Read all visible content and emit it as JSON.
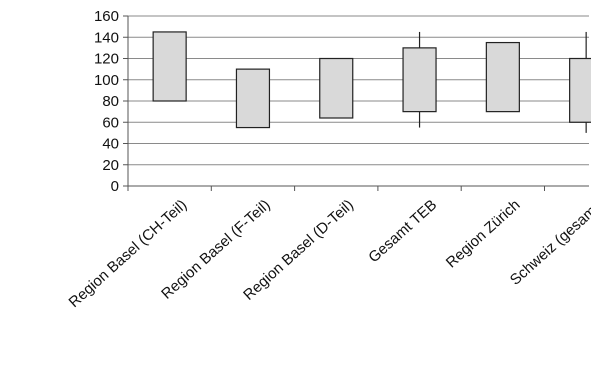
{
  "chart_data": {
    "type": "box",
    "title": "",
    "xlabel": "",
    "ylabel": "",
    "ylim": [
      0,
      160
    ],
    "yticks": [
      0,
      20,
      40,
      60,
      80,
      100,
      120,
      140,
      160
    ],
    "grid": true,
    "categories": [
      "Region Basel (CH-Teil)",
      "Region Basel (F-Teil)",
      "Region Basel (D-Teil)",
      "Gesamt TEB",
      "Region Zürich",
      "Schweiz (gesamt)"
    ],
    "boxes": [
      {
        "low": 80,
        "high": 145,
        "whisker_low": null,
        "whisker_high": null
      },
      {
        "low": 55,
        "high": 110,
        "whisker_low": null,
        "whisker_high": null
      },
      {
        "low": 64,
        "high": 120,
        "whisker_low": null,
        "whisker_high": null
      },
      {
        "low": 70,
        "high": 130,
        "whisker_low": 55,
        "whisker_high": 145
      },
      {
        "low": 70,
        "high": 135,
        "whisker_low": null,
        "whisker_high": null
      },
      {
        "low": 60,
        "high": 120,
        "whisker_low": 50,
        "whisker_high": 145
      }
    ],
    "colors": {
      "box_fill": "#d9d9d9",
      "box_stroke": "#222222",
      "grid": "#8a8a8a",
      "axis": "#555555"
    }
  }
}
